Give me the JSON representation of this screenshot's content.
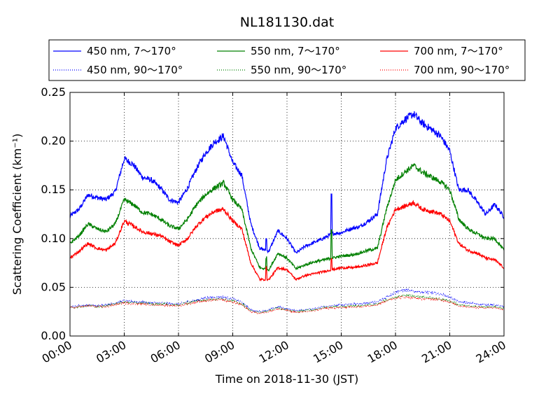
{
  "chart_data": {
    "type": "line",
    "title": "NL181130.dat",
    "xlabel": "Time on 2018-11-30 (JST)",
    "ylabel": "Scattering Coefficient (km⁻¹)",
    "xlim": [
      "00:00",
      "24:00"
    ],
    "ylim": [
      0,
      0.25
    ],
    "grid": true,
    "legend_position": "top",
    "x_tick_labels": [
      "00:00",
      "03:00",
      "06:00",
      "09:00",
      "12:00",
      "15:00",
      "18:00",
      "21:00",
      "24:00"
    ],
    "y_tick_labels": [
      "0.00",
      "0.05",
      "0.10",
      "0.15",
      "0.20",
      "0.25"
    ],
    "x_hours": [
      0,
      0.5,
      1,
      1.5,
      2,
      2.5,
      3,
      3.5,
      4,
      4.5,
      5,
      5.5,
      6,
      6.5,
      7,
      7.5,
      8,
      8.5,
      9,
      9.5,
      10,
      10.5,
      11,
      11.5,
      12,
      12.5,
      13,
      13.5,
      14,
      14.5,
      15,
      15.5,
      16,
      16.5,
      17,
      17.5,
      18,
      18.5,
      19,
      19.5,
      20,
      20.5,
      21,
      21.5,
      22,
      22.5,
      23,
      23.5,
      24
    ],
    "series": [
      {
        "name": "450 nm, 7～170°",
        "color": "#0000ff",
        "style": "solid",
        "values": [
          0.123,
          0.13,
          0.145,
          0.142,
          0.14,
          0.148,
          0.182,
          0.176,
          0.163,
          0.16,
          0.152,
          0.14,
          0.137,
          0.152,
          0.172,
          0.188,
          0.199,
          0.205,
          0.178,
          0.165,
          0.115,
          0.09,
          0.087,
          0.108,
          0.1,
          0.085,
          0.092,
          0.096,
          0.1,
          0.105,
          0.106,
          0.11,
          0.112,
          0.118,
          0.125,
          0.18,
          0.213,
          0.222,
          0.228,
          0.218,
          0.212,
          0.205,
          0.19,
          0.15,
          0.15,
          0.138,
          0.125,
          0.135,
          0.122
        ]
      },
      {
        "name": "450 nm, 90～170°",
        "color": "#0000ff",
        "style": "dotted",
        "values": [
          0.03,
          0.031,
          0.032,
          0.031,
          0.032,
          0.034,
          0.036,
          0.035,
          0.035,
          0.034,
          0.034,
          0.033,
          0.033,
          0.035,
          0.037,
          0.039,
          0.04,
          0.04,
          0.038,
          0.035,
          0.027,
          0.025,
          0.027,
          0.03,
          0.028,
          0.026,
          0.027,
          0.028,
          0.03,
          0.031,
          0.032,
          0.033,
          0.033,
          0.034,
          0.035,
          0.04,
          0.045,
          0.047,
          0.046,
          0.045,
          0.044,
          0.043,
          0.04,
          0.035,
          0.034,
          0.033,
          0.032,
          0.032,
          0.03
        ]
      },
      {
        "name": "550 nm, 7～170°",
        "color": "#008000",
        "style": "solid",
        "values": [
          0.095,
          0.103,
          0.115,
          0.11,
          0.107,
          0.115,
          0.14,
          0.135,
          0.127,
          0.125,
          0.12,
          0.113,
          0.11,
          0.12,
          0.135,
          0.145,
          0.152,
          0.157,
          0.14,
          0.13,
          0.09,
          0.07,
          0.068,
          0.085,
          0.08,
          0.069,
          0.073,
          0.076,
          0.078,
          0.08,
          0.082,
          0.083,
          0.085,
          0.088,
          0.09,
          0.13,
          0.16,
          0.168,
          0.175,
          0.168,
          0.163,
          0.158,
          0.15,
          0.12,
          0.11,
          0.105,
          0.1,
          0.1,
          0.088
        ]
      },
      {
        "name": "550 nm, 90～170°",
        "color": "#008000",
        "style": "dotted",
        "values": [
          0.029,
          0.03,
          0.031,
          0.03,
          0.031,
          0.033,
          0.035,
          0.034,
          0.034,
          0.033,
          0.033,
          0.032,
          0.032,
          0.034,
          0.036,
          0.037,
          0.038,
          0.038,
          0.036,
          0.033,
          0.026,
          0.024,
          0.026,
          0.029,
          0.027,
          0.025,
          0.026,
          0.027,
          0.029,
          0.03,
          0.03,
          0.031,
          0.031,
          0.032,
          0.033,
          0.037,
          0.04,
          0.042,
          0.041,
          0.04,
          0.039,
          0.038,
          0.036,
          0.032,
          0.031,
          0.03,
          0.03,
          0.03,
          0.028
        ]
      },
      {
        "name": "700 nm, 7～170°",
        "color": "#ff0000",
        "style": "solid",
        "values": [
          0.08,
          0.087,
          0.095,
          0.09,
          0.088,
          0.095,
          0.118,
          0.113,
          0.107,
          0.105,
          0.103,
          0.097,
          0.093,
          0.1,
          0.113,
          0.122,
          0.128,
          0.13,
          0.118,
          0.11,
          0.075,
          0.058,
          0.058,
          0.07,
          0.068,
          0.058,
          0.062,
          0.064,
          0.066,
          0.068,
          0.07,
          0.07,
          0.071,
          0.073,
          0.075,
          0.11,
          0.13,
          0.133,
          0.137,
          0.13,
          0.128,
          0.125,
          0.118,
          0.095,
          0.088,
          0.085,
          0.08,
          0.078,
          0.07
        ]
      },
      {
        "name": "700 nm, 90～170°",
        "color": "#ff0000",
        "style": "dotted",
        "values": [
          0.029,
          0.03,
          0.031,
          0.03,
          0.03,
          0.032,
          0.034,
          0.033,
          0.033,
          0.032,
          0.032,
          0.031,
          0.031,
          0.033,
          0.035,
          0.036,
          0.037,
          0.037,
          0.035,
          0.032,
          0.025,
          0.023,
          0.025,
          0.028,
          0.026,
          0.024,
          0.025,
          0.026,
          0.028,
          0.029,
          0.029,
          0.03,
          0.03,
          0.031,
          0.032,
          0.036,
          0.039,
          0.04,
          0.039,
          0.038,
          0.038,
          0.037,
          0.035,
          0.031,
          0.03,
          0.029,
          0.029,
          0.029,
          0.027
        ]
      }
    ]
  }
}
